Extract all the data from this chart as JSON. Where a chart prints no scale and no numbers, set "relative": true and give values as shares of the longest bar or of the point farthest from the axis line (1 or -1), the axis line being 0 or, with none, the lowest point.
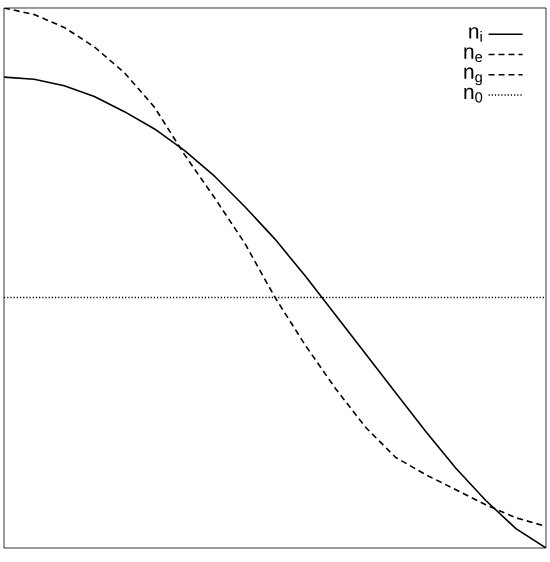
{
  "chart_data": {
    "type": "line",
    "relative": true,
    "legend": "top right",
    "categories": [
      null,
      null,
      null,
      null,
      null,
      null,
      null,
      null,
      null,
      null,
      null,
      null,
      null,
      null,
      null,
      null,
      null,
      null,
      null
    ],
    "series": [
      {
        "name": "n$_{i}$",
        "color": "#000000",
        "line_style": "solid",
        "values": [
          0.872,
          0.868,
          0.856,
          0.836,
          0.808,
          0.776,
          0.736,
          0.688,
          0.632,
          0.572,
          0.504,
          0.432,
          0.36,
          0.288,
          0.216,
          0.148,
          0.088,
          0.036,
          0
        ]
      },
      {
        "name": "n$_{e}$",
        "color": "#000000",
        "line_style": "dashed",
        "values": [
          null,
          null,
          null,
          null,
          null,
          null,
          null,
          null,
          null,
          null,
          null,
          null,
          null,
          null,
          null,
          null,
          null,
          null,
          null
        ]
      },
      {
        "name": "n$_{g}$",
        "color": "#000000",
        "line_style": "dashed",
        "values": [
          1,
          0.988,
          0.964,
          0.928,
          0.88,
          0.816,
          0.728,
          0.648,
          0.564,
          0.464,
          0.376,
          0.296,
          0.224,
          0.168,
          0.136,
          0.108,
          0.08,
          0.056,
          0.04
        ]
      },
      {
        "name": "n$_{0}$",
        "color": "#000000",
        "line_style": "dotted",
        "values": [
          0.464,
          0.464,
          0.464,
          0.464,
          0.464,
          0.464,
          0.464,
          0.464,
          0.464,
          0.464,
          0.464,
          0.464,
          0.464,
          0.464,
          0.464,
          0.464,
          0.464,
          0.464,
          0.464
        ]
      }
    ]
  }
}
